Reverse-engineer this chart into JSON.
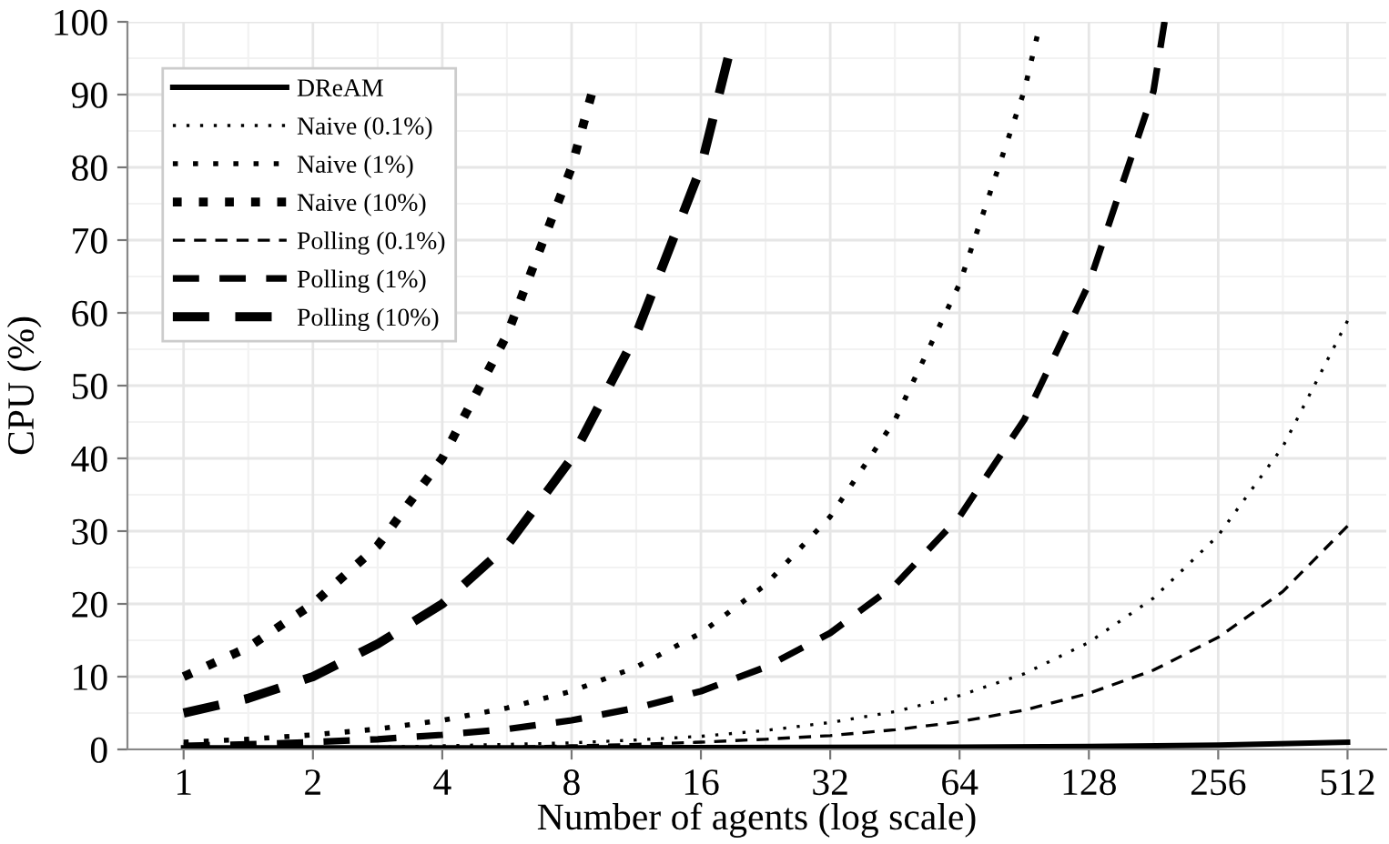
{
  "chart_data": {
    "type": "line",
    "xlabel": "Number of agents (log scale)",
    "ylabel": "CPU (%)",
    "log": "x",
    "xlim": [
      0.74,
      630
    ],
    "xticks": [
      1,
      2,
      4,
      8,
      16,
      32,
      64,
      128,
      256,
      512
    ],
    "ylim": [
      0,
      100
    ],
    "yticks": [
      0,
      10,
      20,
      30,
      40,
      50,
      60,
      70,
      80,
      90,
      100
    ],
    "grid": true,
    "legend": "top left",
    "series": [
      {
        "name": "DReAM",
        "color": "#000000",
        "line_style": "solid",
        "x": [
          1,
          8,
          64,
          128,
          256,
          512
        ],
        "values": [
          0.2,
          0.2,
          0.3,
          0.4,
          0.6,
          1.0
        ]
      },
      {
        "name": "Naive (0.1%)",
        "color": "#000000",
        "line_style": "dotted",
        "x": [
          1,
          1.41,
          2,
          2.83,
          4,
          5.66,
          8,
          11.3,
          16,
          22.6,
          32,
          45.3,
          64,
          90.5,
          128,
          181,
          256,
          362,
          512
        ],
        "values": [
          0.1,
          0.2,
          0.2,
          0.3,
          0.5,
          0.7,
          0.9,
          1.3,
          1.8,
          2.6,
          3.7,
          5.2,
          7.4,
          10.4,
          14.7,
          20.8,
          29.4,
          41.6,
          58.9
        ]
      },
      {
        "name": "Naive (1%)",
        "color": "#000000",
        "line_style": "dotted",
        "x": [
          1,
          1.41,
          2,
          2.83,
          4,
          5.66,
          8,
          11.3,
          16,
          22.6,
          32,
          45.3,
          64,
          90.5,
          97
        ],
        "values": [
          1,
          1.4,
          2,
          2.8,
          4,
          5.7,
          8,
          11.3,
          16,
          22.6,
          32,
          45.3,
          64,
          90.5,
          98
        ]
      },
      {
        "name": "Naive (10%)",
        "color": "#000000",
        "line_style": "dotted",
        "x": [
          1,
          1.41,
          2,
          2.83,
          4,
          5.66,
          8,
          8.9
        ],
        "values": [
          10,
          14,
          20,
          28,
          40,
          57,
          80,
          90
        ]
      },
      {
        "name": "Polling (0.1%)",
        "color": "#000000",
        "line_style": "dashed",
        "x": [
          1,
          1.41,
          2,
          2.83,
          4,
          5.66,
          8,
          11.3,
          16,
          22.6,
          32,
          45.3,
          64,
          90.5,
          128,
          181,
          256,
          362,
          512
        ],
        "values": [
          0.1,
          0.1,
          0.1,
          0.2,
          0.2,
          0.3,
          0.5,
          0.7,
          1,
          1.4,
          1.9,
          2.7,
          3.8,
          5.4,
          7.7,
          10.9,
          15.4,
          21.7,
          30.7
        ]
      },
      {
        "name": "Polling (1%)",
        "color": "#000000",
        "line_style": "dashed",
        "x": [
          1,
          1.41,
          2,
          2.83,
          4,
          5.66,
          8,
          11.3,
          16,
          22.6,
          32,
          45.3,
          64,
          90.5,
          128,
          181,
          192
        ],
        "values": [
          0.5,
          0.7,
          1,
          1.4,
          2,
          2.8,
          4,
          5.7,
          8,
          11.3,
          16,
          22.6,
          32,
          45.3,
          64,
          90.5,
          100
        ]
      },
      {
        "name": "Polling (10%)",
        "color": "#000000",
        "line_style": "dashed",
        "x": [
          1,
          1.41,
          2,
          2.83,
          4,
          5.66,
          8,
          11.3,
          16,
          18.5
        ],
        "values": [
          5,
          7,
          10,
          14.5,
          20,
          28,
          40,
          57,
          80,
          95
        ]
      }
    ]
  }
}
